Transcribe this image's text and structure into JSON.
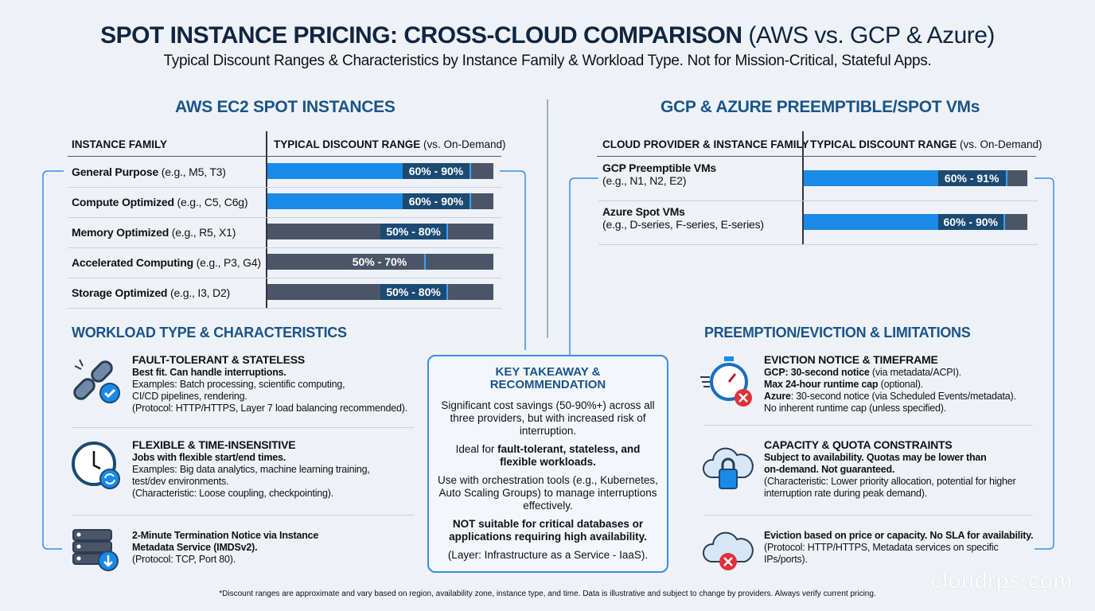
{
  "header": {
    "title_bold": "SPOT INSTANCE PRICING: CROSS-CLOUD COMPARISON",
    "title_light": "(AWS vs. GCP & Azure)",
    "subtitle": "Typical Discount Ranges & Characteristics by Instance Family & Workload Type. Not for Mission-Critical, Stateful Apps."
  },
  "aws": {
    "title": "AWS EC2 SPOT INSTANCES",
    "col1": "INSTANCE FAMILY",
    "col2_bold": "TYPICAL DISCOUNT RANGE",
    "col2_light": "(vs. On-Demand)",
    "rows": [
      {
        "name": "General Purpose",
        "ex": "(e.g., M5, T3)",
        "range": "60% - 90%",
        "min": 60,
        "max": 90,
        "highlight": true
      },
      {
        "name": "Compute Optimized",
        "ex": "(e.g., C5, C6g)",
        "range": "60% - 90%",
        "min": 60,
        "max": 90,
        "highlight": true
      },
      {
        "name": "Memory Optimized",
        "ex": "(e.g., R5, X1)",
        "range": "50% - 80%",
        "min": 50,
        "max": 80,
        "highlight": false
      },
      {
        "name": "Accelerated Computing",
        "ex": "(e.g., P3, G4)",
        "range": "50% - 70%",
        "min": 50,
        "max": 70,
        "highlight": false
      },
      {
        "name": "Storage Optimized",
        "ex": "(e.g., I3, D2)",
        "range": "50% - 80%",
        "min": 50,
        "max": 80,
        "highlight": false
      }
    ]
  },
  "gcp": {
    "title": "GCP & AZURE PREEMPTIBLE/SPOT VMs",
    "col1": "CLOUD PROVIDER & INSTANCE FAMILY",
    "col2_bold": "TYPICAL DISCOUNT RANGE",
    "col2_light": "(vs. On-Demand)",
    "rows": [
      {
        "name": "GCP Preemptible VMs",
        "ex": "(e.g., N1, N2, E2)",
        "range": "60% - 91%",
        "min": 60,
        "max": 91,
        "highlight": true
      },
      {
        "name": "Azure Spot VMs",
        "ex": "(e.g., D-series, F-series, E-series)",
        "range": "60% - 90%",
        "min": 60,
        "max": 90,
        "highlight": true
      }
    ]
  },
  "workload": {
    "title": "WORKLOAD TYPE & CHARACTERISTICS",
    "items": [
      {
        "icon": "broken-chain-check-icon",
        "h": "FAULT-TOLERANT & STATELESS",
        "b": "Best fit. Can handle interruptions.",
        "l1": "Examples: Batch processing, scientific computing,",
        "l2": "CI/CD pipelines, rendering.",
        "l3": "(Protocol: HTTP/HTTPS, Layer 7 load balancing recommended)."
      },
      {
        "icon": "clock-refresh-icon",
        "h": "FLEXIBLE & TIME-INSENSITIVE",
        "b": "Jobs with flexible start/end times.",
        "l1": "Examples: Big data analytics, machine learning training,",
        "l2": "test/dev environments.",
        "l3": "(Characteristic: Loose coupling, checkpointing)."
      },
      {
        "icon": "server-download-icon",
        "b1": "2-Minute Termination Notice via Instance",
        "b2": "Metadata Service (IMDSv2).",
        "l1": "(Protocol: TCP, Port 80)."
      }
    ]
  },
  "limits": {
    "title": "PREEMPTION/EVICTION & LIMITATIONS",
    "items": [
      {
        "icon": "stopwatch-x-icon",
        "h": "EVICTION NOTICE & TIMEFRAME",
        "a1b": "GCP: 30-second notice",
        "a1": " (via metadata/ACPI).",
        "a2b": "Max 24-hour runtime cap",
        "a2": " (optional).",
        "a3b": "Azure",
        "a3": ": 30-second notice (via Scheduled Events/metadata).",
        "a4": "No inherent runtime cap (unless specified)."
      },
      {
        "icon": "cloud-lock-icon",
        "h": "CAPACITY & QUOTA CONSTRAINTS",
        "b1": "Subject to availability. Quotas may be lower than",
        "b2": "on-demand. Not guaranteed.",
        "l1": "(Characteristic: Lower priority allocation, potential for higher",
        "l2": "interruption rate during peak demand)."
      },
      {
        "icon": "cloud-x-icon",
        "b1": "Eviction based on price or capacity. No SLA for availability.",
        "l1": "(Protocol: HTTP/HTTPS, Metadata services on specific",
        "l2": "IPs/ports)."
      }
    ]
  },
  "takeaway": {
    "title": "KEY TAKEAWAY & RECOMMENDATION",
    "p1": "Significant cost savings (50-90%+) across all three providers, but with increased risk of interruption.",
    "p2a": "Ideal for ",
    "p2b": "fault-tolerant, stateless, and flexible workloads.",
    "p3": "Use with orchestration tools (e.g., Kubernetes, Auto Scaling Groups) to manage interruptions effectively.",
    "p4": "NOT suitable for critical databases or applications requiring high availability.",
    "p5": "(Layer: Infrastructure as a Service - IaaS)."
  },
  "footnote": "*Discount ranges are approximate and vary based on region, availability zone, instance type, and time. Data is illustrative and subject to change by providers. Always verify current pricing.",
  "watermark": "cloudrps.com",
  "colors": {
    "accent": "#1a8ae6",
    "range": "#1b4a72",
    "bar": "#4b5567",
    "heading": "#1b5488",
    "alert": "#e0303a"
  }
}
